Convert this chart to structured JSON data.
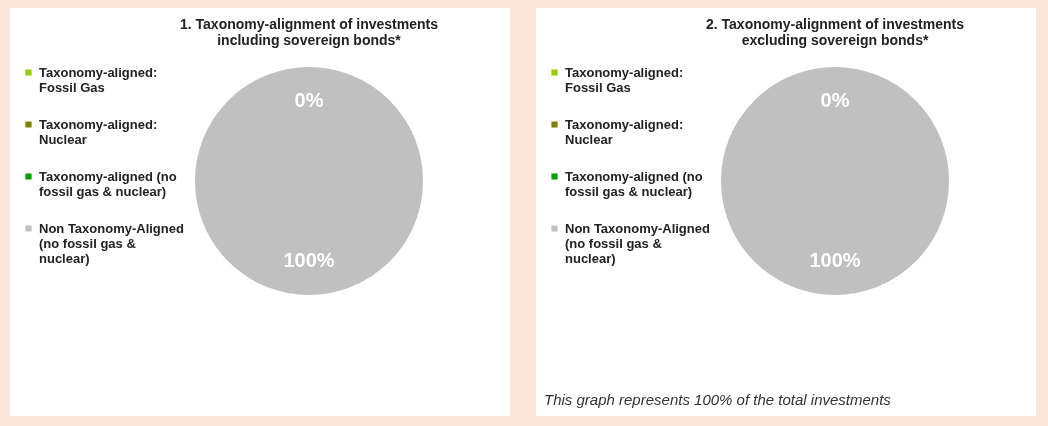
{
  "chart_data": [
    {
      "type": "pie",
      "title": "1. Taxonomy-alignment of investments including sovereign bonds*",
      "categories": [
        "Taxonomy-aligned: Fossil Gas",
        "Taxonomy-aligned: Nuclear",
        "Taxonomy-aligned (no fossil gas & nuclear)",
        "Non Taxonomy-Aligned (no fossil gas & nuclear)"
      ],
      "values": [
        0,
        0,
        0,
        100
      ],
      "colors": [
        "#99cc00",
        "#808000",
        "#00a000",
        "#c0c0c0"
      ],
      "value_labels": [
        null,
        null,
        "0%",
        "100%"
      ],
      "legend": "left"
    },
    {
      "type": "pie",
      "title": "2. Taxonomy-alignment of investments excluding sovereign bonds*",
      "categories": [
        "Taxonomy-aligned: Fossil Gas",
        "Taxonomy-aligned: Nuclear",
        "Taxonomy-aligned (no fossil gas & nuclear)",
        "Non Taxonomy-Aligned (no fossil gas & nuclear)"
      ],
      "values": [
        0,
        0,
        0,
        100
      ],
      "colors": [
        "#99cc00",
        "#808000",
        "#00a000",
        "#c0c0c0"
      ],
      "value_labels": [
        null,
        null,
        "0%",
        "100%"
      ],
      "legend": "left",
      "annotations": [
        "This graph represents 100% of the total investments"
      ]
    }
  ]
}
